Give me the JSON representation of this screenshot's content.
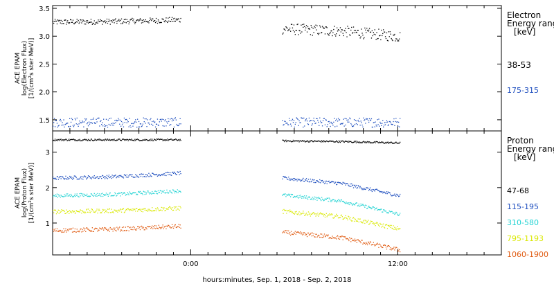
{
  "chart_data": [
    {
      "type": "scatter",
      "panel": "electron",
      "ylabel_lines": [
        "ACE EPAM",
        "log(Electron Flux)",
        "[1/(cm²s ster MeV)]"
      ],
      "ylim": [
        1.3,
        3.55
      ],
      "yticks": [
        1.5,
        2.0,
        2.5,
        3.0,
        3.5
      ],
      "ytick_labels": [
        "1.5",
        "2.0",
        "2.5",
        "3.0",
        "3.5"
      ],
      "xlim_hours": [
        -8,
        18
      ],
      "legend_title": [
        "Electron",
        "Energy ranges",
        "[keV]"
      ],
      "series": [
        {
          "name": "38-53",
          "color": "#000000",
          "segments": [
            [
              -8,
              -0.6,
              3.26,
              0.04,
              0.1
            ],
            [
              5.3,
              12.1,
              3.14,
              -0.14,
              0.2
            ]
          ]
        },
        {
          "name": "175-315",
          "color": "#1f4fbf",
          "segments": [
            [
              -8,
              -0.6,
              1.46,
              0.0,
              0.17
            ],
            [
              5.3,
              12.1,
              1.46,
              0.0,
              0.17
            ]
          ]
        }
      ]
    },
    {
      "type": "scatter",
      "panel": "proton",
      "ylabel_lines": [
        "ACE EPAM",
        "log(Proton Flux)",
        "[1/(cm²s ster MeV)]"
      ],
      "ylim": [
        0.1,
        3.6
      ],
      "yticks": [
        1,
        2,
        3
      ],
      "ytick_labels": [
        "1",
        "2",
        "3"
      ],
      "xlim_hours": [
        -8,
        18
      ],
      "legend_title": [
        "Proton",
        "Energy ranges",
        "[keV]"
      ],
      "series": [
        {
          "name": "47-68",
          "color": "#000000",
          "segments": [
            [
              -8,
              -0.6,
              3.36,
              0.0,
              0.05
            ],
            [
              5.3,
              12.1,
              3.33,
              -0.06,
              0.05
            ]
          ]
        },
        {
          "name": "115-195",
          "color": "#1f4fbf",
          "segments": [
            [
              -8,
              -0.6,
              2.28,
              0.14,
              0.1
            ],
            [
              5.3,
              12.1,
              2.28,
              -0.5,
              0.1
            ]
          ]
        },
        {
          "name": "310-580",
          "color": "#22d3d3",
          "segments": [
            [
              -8,
              -0.6,
              1.78,
              0.14,
              0.1
            ],
            [
              5.3,
              12.1,
              1.8,
              -0.55,
              0.1
            ]
          ]
        },
        {
          "name": "795-1193",
          "color": "#d9e800",
          "segments": [
            [
              -8,
              -0.6,
              1.33,
              0.1,
              0.12
            ],
            [
              5.3,
              12.1,
              1.34,
              -0.5,
              0.12
            ]
          ]
        },
        {
          "name": "1060-1900",
          "color": "#e05a10",
          "segments": [
            [
              -8,
              -0.6,
              0.8,
              0.12,
              0.12
            ],
            [
              5.3,
              12.1,
              0.75,
              -0.5,
              0.12
            ]
          ]
        }
      ]
    }
  ],
  "x_axis": {
    "xlim_hours": [
      -8,
      18
    ],
    "major_ticks_hours": [
      0,
      12
    ],
    "major_tick_labels": [
      "0:00",
      "12:00"
    ],
    "minor_tick_step_hours": 1,
    "label": "hours:minutes, Sep.  1, 2018 - Sep.  2, 2018"
  },
  "colors": {
    "background": "#ffffff",
    "axis": "#000000"
  }
}
